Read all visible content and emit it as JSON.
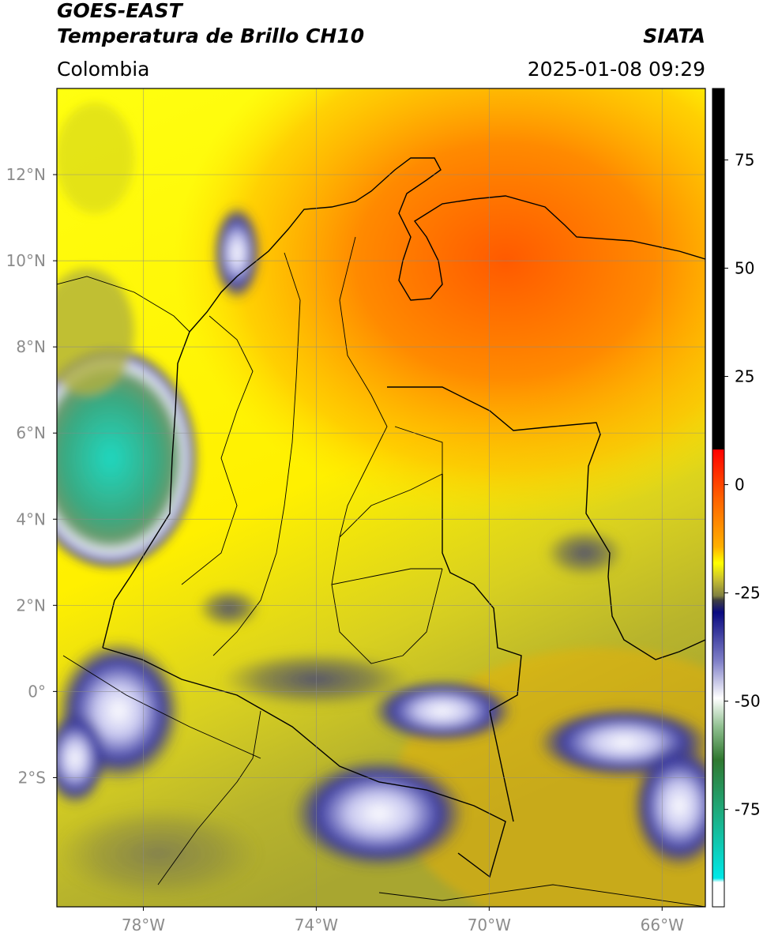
{
  "header": {
    "title": "GOES-EAST",
    "subtitle": "Temperatura de Brillo CH10",
    "region": "Colombia",
    "source": "SIATA",
    "datetime": "2025-01-08 09:29"
  },
  "map": {
    "lon_range": [
      -80,
      -65
    ],
    "lat_range": [
      -5,
      14
    ],
    "grid": true,
    "lon_ticks": [
      {
        "value": -78,
        "label": "78°W"
      },
      {
        "value": -74,
        "label": "74°W"
      },
      {
        "value": -70,
        "label": "70°W"
      },
      {
        "value": -66,
        "label": "66°W"
      }
    ],
    "lat_ticks": [
      {
        "value": 12,
        "label": "12°N"
      },
      {
        "value": 10,
        "label": "10°N"
      },
      {
        "value": 8,
        "label": "8°N"
      },
      {
        "value": 6,
        "label": "6°N"
      },
      {
        "value": 4,
        "label": "4°N"
      },
      {
        "value": 2,
        "label": "2°N"
      },
      {
        "value": 0,
        "label": "0°"
      },
      {
        "value": -2,
        "label": "2°S"
      }
    ]
  },
  "colorbar": {
    "range": [
      -97.5,
      91.5
    ],
    "ticks": [
      75,
      50,
      25,
      0,
      -25,
      -50,
      -75
    ]
  }
}
